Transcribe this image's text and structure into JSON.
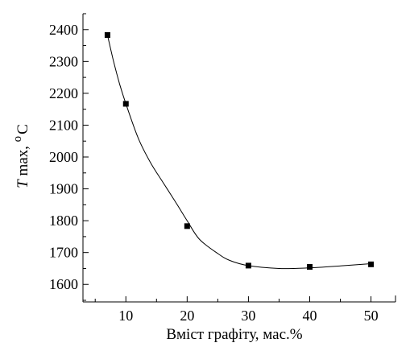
{
  "chart_data": {
    "type": "line",
    "title": "",
    "xlabel": "Вміст графіту, мас.%",
    "ylabel": {
      "italic": "T",
      "text": " max, ",
      "unit_sup": "o",
      "unit": "C"
    },
    "xlim": [
      3,
      54
    ],
    "ylim": [
      1545,
      2450
    ],
    "xticks": [
      10,
      20,
      30,
      40,
      50
    ],
    "yticks": [
      1600,
      1700,
      1800,
      1900,
      2000,
      2100,
      2200,
      2300,
      2400
    ],
    "grid": false,
    "series": [
      {
        "marker": "square",
        "color": "#000000",
        "x": [
          7,
          10,
          20,
          30,
          40,
          50
        ],
        "y": [
          2383,
          2167,
          1783,
          1659,
          1655,
          1663
        ],
        "curve": [
          [
            7,
            2383
          ],
          [
            8,
            2300
          ],
          [
            9,
            2228
          ],
          [
            10,
            2167
          ],
          [
            12,
            2060
          ],
          [
            14,
            1983
          ],
          [
            16,
            1922
          ],
          [
            18,
            1862
          ],
          [
            20,
            1800
          ],
          [
            22,
            1742
          ],
          [
            25,
            1697
          ],
          [
            27,
            1675
          ],
          [
            30,
            1659
          ],
          [
            35,
            1650
          ],
          [
            40,
            1652
          ],
          [
            45,
            1658
          ],
          [
            50,
            1665
          ]
        ]
      }
    ]
  }
}
